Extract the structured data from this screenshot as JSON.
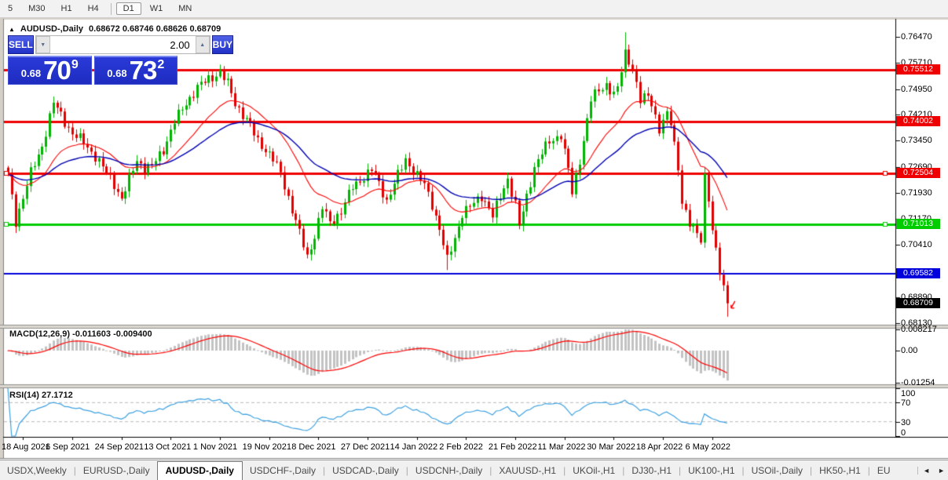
{
  "toolbar": {
    "items": [
      {
        "label": "5",
        "active": false
      },
      {
        "label": "M30",
        "active": false
      },
      {
        "label": "H1",
        "active": false
      },
      {
        "label": "H4",
        "active": false
      },
      {
        "label": "D1",
        "active": true
      },
      {
        "label": "W1",
        "active": false
      },
      {
        "label": "MN",
        "active": false
      }
    ]
  },
  "title": {
    "collapse": "▲",
    "symbol": "AUDUSD-,Daily",
    "ohlc": "0.68672 0.68746 0.68626 0.68709"
  },
  "trade_panel": {
    "sell_label": "SELL",
    "buy_label": "BUY",
    "volume": "2.00",
    "down_arrow": "▼",
    "up_arrow": "▲",
    "sell_small": "0.68",
    "sell_big": "70",
    "sell_sup": "9",
    "buy_small": "0.68",
    "buy_big": "73",
    "buy_sup": "2"
  },
  "colors": {
    "bull": "#00b400",
    "bear": "#e00000",
    "ma_fast": "#ff0000",
    "ma_slow": "#0000b4",
    "macd_hist": "#c3c3c3",
    "macd_signal": "#ff0000",
    "rsi_line": "#3da0e0",
    "dashed": "#b8b8b8",
    "separator": "#dcd8d0",
    "separator_edge": "#8f8f8f",
    "axis": "#000000",
    "frame": "#808080"
  },
  "chart_data": {
    "type": "candlestick",
    "symbol": "AUDUSD-",
    "timeframe": "Daily",
    "ohlc_line": {
      "open": "0.68672",
      "high": "0.68746",
      "low": "0.68626",
      "close": "0.68709"
    },
    "price_axis_ticks": [
      "0.76470",
      "0.75710",
      "0.74950",
      "0.74210",
      "0.73450",
      "0.72690",
      "0.71930",
      "0.71170",
      "0.70410",
      "0.68890",
      "0.68130"
    ],
    "price_axis_max": 0.7691,
    "price_axis_min": 0.68087,
    "date_ticks": [
      "18 Aug 2021",
      "6 Sep 2021",
      "24 Sep 2021",
      "13 Oct 2021",
      "1 Nov 2021",
      "19 Nov 2021",
      "8 Dec 2021",
      "27 Dec 2021",
      "14 Jan 2022",
      "2 Feb 2022",
      "21 Feb 2022",
      "11 Mar 2022",
      "30 Mar 2022",
      "18 Apr 2022",
      "6 May 2022"
    ],
    "bars_per_tick": 13,
    "first_tick_bar": 4,
    "total_bars": 191,
    "last_close": 0.6871,
    "price_anchors": [
      [
        0,
        0.724
      ],
      [
        1,
        0.718
      ],
      [
        2,
        0.711
      ],
      [
        4,
        0.718
      ],
      [
        6,
        0.725
      ],
      [
        9,
        0.733
      ],
      [
        12,
        0.7455
      ],
      [
        14,
        0.742
      ],
      [
        17,
        0.7365
      ],
      [
        20,
        0.734
      ],
      [
        23,
        0.73
      ],
      [
        26,
        0.725
      ],
      [
        28,
        0.722
      ],
      [
        30,
        0.7175
      ],
      [
        32,
        0.723
      ],
      [
        34,
        0.729
      ],
      [
        36,
        0.7265
      ],
      [
        38,
        0.727
      ],
      [
        41,
        0.732
      ],
      [
        44,
        0.74
      ],
      [
        47,
        0.7455
      ],
      [
        50,
        0.75
      ],
      [
        53,
        0.7525
      ],
      [
        56,
        0.7545
      ],
      [
        58,
        0.751
      ],
      [
        60,
        0.7455
      ],
      [
        63,
        0.7405
      ],
      [
        66,
        0.7345
      ],
      [
        68,
        0.732
      ],
      [
        70,
        0.729
      ],
      [
        72,
        0.725
      ],
      [
        74,
        0.718
      ],
      [
        76,
        0.711
      ],
      [
        78,
        0.704
      ],
      [
        79,
        0.7005
      ],
      [
        81,
        0.707
      ],
      [
        83,
        0.715
      ],
      [
        85,
        0.7105
      ],
      [
        88,
        0.714
      ],
      [
        91,
        0.721
      ],
      [
        94,
        0.724
      ],
      [
        96,
        0.726
      ],
      [
        98,
        0.722
      ],
      [
        100,
        0.717
      ],
      [
        102,
        0.722
      ],
      [
        105,
        0.729
      ],
      [
        107,
        0.726
      ],
      [
        110,
        0.7215
      ],
      [
        112,
        0.716
      ],
      [
        114,
        0.709
      ],
      [
        116,
        0.6995
      ],
      [
        118,
        0.706
      ],
      [
        120,
        0.7135
      ],
      [
        123,
        0.716
      ],
      [
        125,
        0.7185
      ],
      [
        127,
        0.715
      ],
      [
        128,
        0.7125
      ],
      [
        130,
        0.718
      ],
      [
        132,
        0.7235
      ],
      [
        134,
        0.716
      ],
      [
        135,
        0.7095
      ],
      [
        137,
        0.718
      ],
      [
        139,
        0.727
      ],
      [
        141,
        0.731
      ],
      [
        143,
        0.734
      ],
      [
        146,
        0.7365
      ],
      [
        148,
        0.726
      ],
      [
        149,
        0.719
      ],
      [
        151,
        0.729
      ],
      [
        154,
        0.7465
      ],
      [
        156,
        0.749
      ],
      [
        158,
        0.751
      ],
      [
        160,
        0.748
      ],
      [
        161,
        0.7495
      ],
      [
        163,
        0.76
      ],
      [
        165,
        0.756
      ],
      [
        167,
        0.746
      ],
      [
        169,
        0.7475
      ],
      [
        170,
        0.7455
      ],
      [
        172,
        0.738
      ],
      [
        174,
        0.742
      ],
      [
        175,
        0.7395
      ],
      [
        177,
        0.727
      ],
      [
        178,
        0.717
      ],
      [
        180,
        0.71
      ],
      [
        181,
        0.7085
      ],
      [
        183,
        0.706
      ],
      [
        184,
        0.7245
      ],
      [
        185,
        0.718
      ],
      [
        186,
        0.708
      ],
      [
        188,
        0.696
      ],
      [
        190,
        0.6871
      ]
    ],
    "spikes": [
      {
        "i": 2,
        "low": 0.7106
      },
      {
        "i": 30,
        "low": 0.717
      },
      {
        "i": 56,
        "high": 0.7555
      },
      {
        "i": 116,
        "low": 0.6968
      },
      {
        "i": 163,
        "high": 0.7661
      },
      {
        "i": 190,
        "low": 0.6832
      }
    ],
    "levels": [
      {
        "price": 0.75512,
        "label": "0.75512",
        "color": "#ee0000",
        "text": "#ffffff",
        "width": 3,
        "handles": false
      },
      {
        "price": 0.74002,
        "label": "0.74002",
        "color": "#ee0000",
        "text": "#ffffff",
        "width": 3,
        "handles": false
      },
      {
        "price": 0.72504,
        "label": "0.72504",
        "color": "#ee0000",
        "text": "#ffffff",
        "width": 3,
        "handles": true
      },
      {
        "price": 0.71013,
        "label": "0.71013",
        "color": "#00cc00",
        "text": "#ffffff",
        "width": 3,
        "handles": true
      },
      {
        "price": 0.69582,
        "label": "0.69582",
        "color": "#0000dd",
        "text": "#ffffff",
        "width": 2,
        "handles": false
      }
    ],
    "current_price": {
      "value": 0.68709,
      "label": "0.68709",
      "badge": "#000000",
      "text": "#ffffff"
    },
    "ma_fast_period": 20,
    "ma_slow_period": 45,
    "macd": {
      "label": "MACD(12,26,9) -0.011603 -0.009400",
      "fast": 12,
      "slow": 26,
      "signal": 9,
      "axis_ticks": [
        {
          "label": "0.008217",
          "v": 0.008217
        },
        {
          "label": "0.00",
          "v": 0
        },
        {
          "label": "-0.01254",
          "v": -0.01254
        }
      ]
    },
    "rsi": {
      "label": "RSI(14) 27.1712",
      "period": 14,
      "levels": [
        70,
        30
      ],
      "axis_ticks": [
        {
          "label": "100",
          "v": 100
        },
        {
          "label": "70",
          "v": 70
        },
        {
          "label": "30",
          "v": 30
        },
        {
          "label": "0",
          "v": 0
        }
      ]
    }
  },
  "tabs": {
    "items": [
      {
        "label": "USDX,Weekly",
        "active": false
      },
      {
        "label": "EURUSD-,Daily",
        "active": false
      },
      {
        "label": "AUDUSD-,Daily",
        "active": true
      },
      {
        "label": "USDCHF-,Daily",
        "active": false
      },
      {
        "label": "USDCAD-,Daily",
        "active": false
      },
      {
        "label": "USDCNH-,Daily",
        "active": false
      },
      {
        "label": "XAUUSD-,H1",
        "active": false
      },
      {
        "label": "UKOil-,H1",
        "active": false
      },
      {
        "label": "DJ30-,H1",
        "active": false
      },
      {
        "label": "UK100-,H1",
        "active": false
      },
      {
        "label": "USOil-,Daily",
        "active": false
      },
      {
        "label": "HK50-,H1",
        "active": false
      },
      {
        "label": "EU",
        "active": false
      }
    ],
    "scroll_left": "◄",
    "scroll_right": "►"
  }
}
